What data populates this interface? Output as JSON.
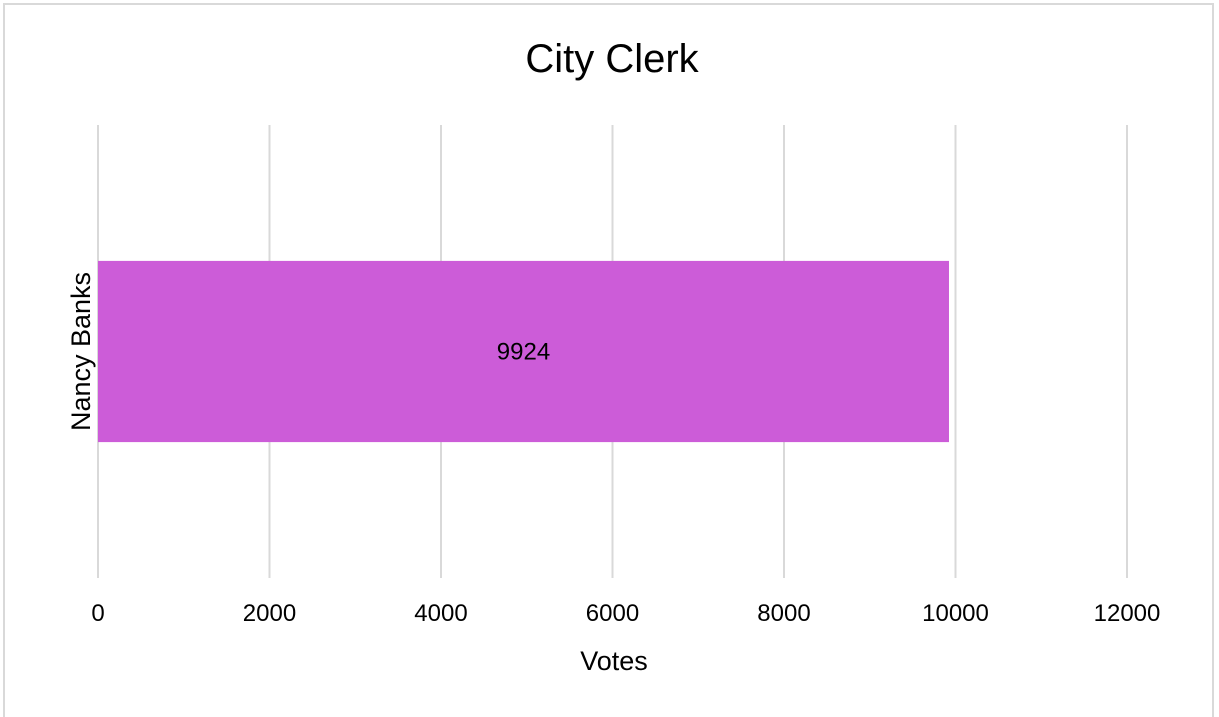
{
  "chart_data": {
    "type": "bar",
    "orientation": "horizontal",
    "title": "City Clerk",
    "xlabel": "Votes",
    "ylabel": "",
    "categories": [
      "Nancy Banks"
    ],
    "values": [
      9924
    ],
    "data_labels": [
      "9924"
    ],
    "xlim": [
      0,
      12000
    ],
    "x_ticks": [
      0,
      2000,
      4000,
      6000,
      8000,
      10000,
      12000
    ],
    "x_tick_labels": [
      "0",
      "2000",
      "4000",
      "6000",
      "8000",
      "10000",
      "12000"
    ],
    "grid": true,
    "legend": "none",
    "colors": {
      "bar": "#cc5cd8",
      "gridline": "#d9d9d9",
      "border": "#d9d9d9"
    }
  }
}
